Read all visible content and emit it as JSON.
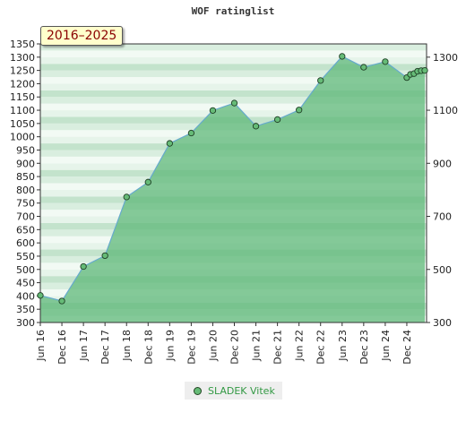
{
  "chart_data": {
    "type": "area",
    "title": "WOF ratinglist",
    "period": "2016–2025",
    "series": [
      {
        "name": "SLADEK Vitek",
        "x": [
          "2016-06",
          "2016-12",
          "2017-06",
          "2017-12",
          "2018-06",
          "2018-12",
          "2019-06",
          "2019-12",
          "2020-06",
          "2020-12",
          "2021-06",
          "2021-12",
          "2022-06",
          "2022-12",
          "2023-06",
          "2023-12",
          "2024-06",
          "2024-12",
          "2025-01",
          "2025-02",
          "2025-03",
          "2025-04",
          "2025-05"
        ],
        "values": [
          402,
          381,
          511,
          552,
          773,
          829,
          975,
          1014,
          1099,
          1127,
          1040,
          1065,
          1101,
          1212,
          1303,
          1262,
          1283,
          1223,
          1235,
          1238,
          1247,
          1249,
          1250
        ]
      }
    ],
    "x_tick_labels": [
      "Jun 16",
      "Dec 16",
      "Jun 17",
      "Dec 17",
      "Jun 18",
      "Dec 18",
      "Jun 19",
      "Dec 19",
      "Jun 20",
      "Dec 20",
      "Jun 21",
      "Dec 21",
      "Jun 22",
      "Dec 22",
      "Jun 23",
      "Dec 23",
      "Jun 24",
      "Dec 24"
    ],
    "y_left_ticks": [
      300,
      350,
      400,
      450,
      500,
      550,
      600,
      650,
      700,
      750,
      800,
      850,
      900,
      950,
      1000,
      1050,
      1100,
      1150,
      1200,
      1250,
      1300,
      1350
    ],
    "y_right_ticks": [
      300,
      500,
      700,
      900,
      1100,
      1300
    ],
    "ylim": [
      300,
      1350
    ],
    "legend_position": "bottom",
    "colors": {
      "line": "#66aacc",
      "fill": "#7cc496",
      "marker": "#66bb77",
      "legend_text": "#339944",
      "badge_text": "#8b0000",
      "badge_bg": "#ffffcc"
    }
  }
}
